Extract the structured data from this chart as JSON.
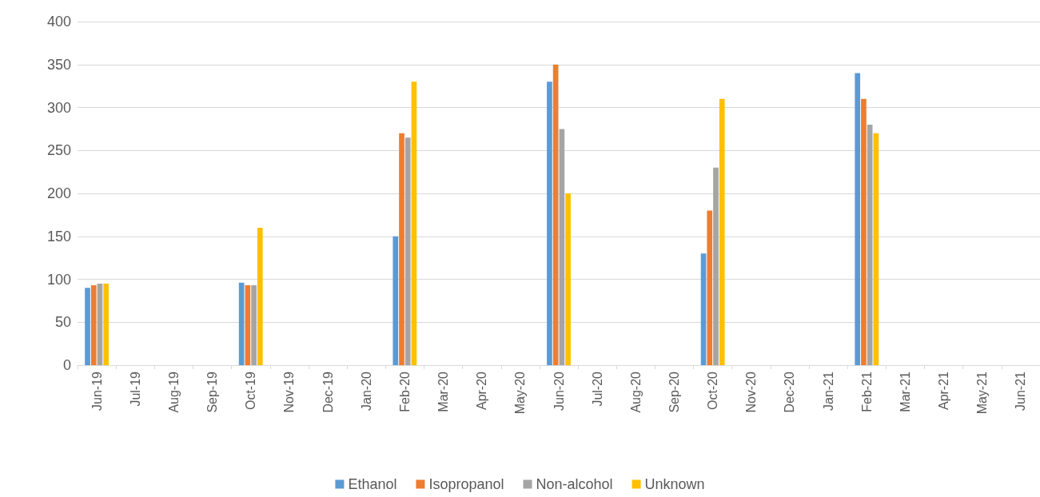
{
  "chart_data": {
    "type": "bar",
    "categories": [
      "Jun-19",
      "Jul-19",
      "Aug-19",
      "Sep-19",
      "Oct-19",
      "Nov-19",
      "Dec-19",
      "Jan-20",
      "Feb-20",
      "Mar-20",
      "Apr-20",
      "May-20",
      "Jun-20",
      "Jul-20",
      "Aug-20",
      "Sep-20",
      "Oct-20",
      "Nov-20",
      "Dec-20",
      "Jan-21",
      "Feb-21",
      "Mar-21",
      "Apr-21",
      "May-21",
      "Jun-21"
    ],
    "series": [
      {
        "name": "Ethanol",
        "color": "#5b9bd5",
        "values": [
          90,
          null,
          null,
          null,
          96,
          null,
          null,
          null,
          150,
          null,
          null,
          null,
          330,
          null,
          null,
          null,
          130,
          null,
          null,
          null,
          340,
          null,
          null,
          null,
          null
        ]
      },
      {
        "name": "Isopropanol",
        "color": "#ed7d31",
        "values": [
          93,
          null,
          null,
          null,
          93,
          null,
          null,
          null,
          270,
          null,
          null,
          null,
          350,
          null,
          null,
          null,
          180,
          null,
          null,
          null,
          310,
          null,
          null,
          null,
          null
        ]
      },
      {
        "name": "Non-alcohol",
        "color": "#a5a5a5",
        "values": [
          95,
          null,
          null,
          null,
          93,
          null,
          null,
          null,
          265,
          null,
          null,
          null,
          275,
          null,
          null,
          null,
          230,
          null,
          null,
          null,
          280,
          null,
          null,
          null,
          null
        ]
      },
      {
        "name": "Unknown",
        "color": "#ffc000",
        "values": [
          95,
          null,
          null,
          null,
          160,
          null,
          null,
          null,
          330,
          null,
          null,
          null,
          200,
          null,
          null,
          null,
          310,
          null,
          null,
          null,
          270,
          null,
          null,
          null,
          null
        ]
      }
    ],
    "ylim": [
      0,
      400
    ],
    "yticks": [
      0,
      50,
      100,
      150,
      200,
      250,
      300,
      350,
      400
    ],
    "grid": "y",
    "legend": "bottom"
  }
}
